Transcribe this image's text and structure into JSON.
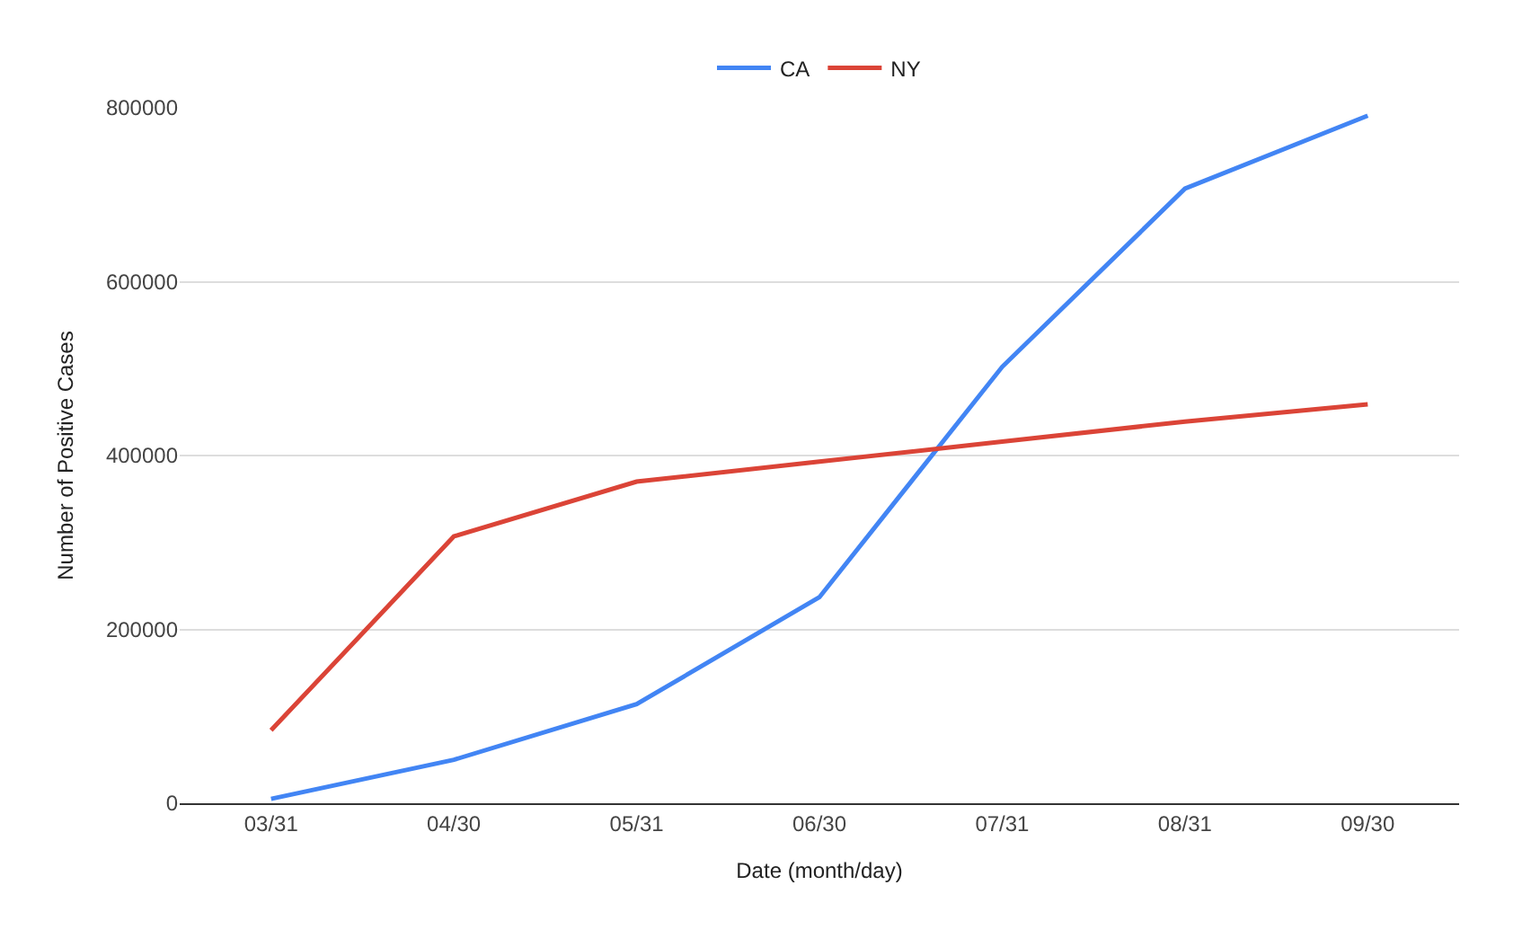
{
  "chart_data": {
    "type": "line",
    "xlabel": "Date (month/day)",
    "ylabel": "Number of Positive Cases",
    "categories": [
      "03/31",
      "04/30",
      "05/31",
      "06/30",
      "07/31",
      "08/31",
      "09/30"
    ],
    "series": [
      {
        "name": "CA",
        "color": "#4285f4",
        "values": [
          5000,
          50000,
          114000,
          237000,
          502000,
          707000,
          791000
        ]
      },
      {
        "name": "NY",
        "color": "#db4437",
        "values": [
          84000,
          307000,
          370000,
          393000,
          416000,
          439000,
          459000
        ]
      }
    ],
    "ylim": [
      0,
      800000
    ],
    "yticks": [
      0,
      200000,
      400000,
      600000,
      800000
    ],
    "grid": "y",
    "legend": "top",
    "marker": "none",
    "line_style": "solid"
  }
}
